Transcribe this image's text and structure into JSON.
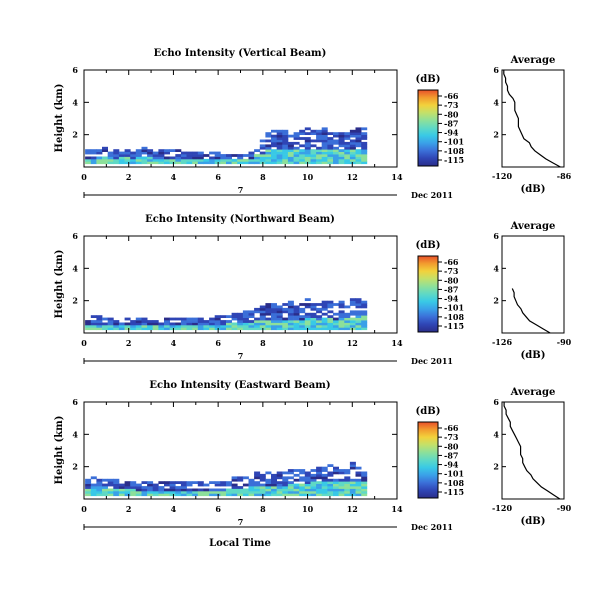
{
  "colors": {
    "colormap": [
      "#2a2d8a",
      "#2f45b5",
      "#3b6fd8",
      "#3aa0e8",
      "#39c9e6",
      "#5fd9c5",
      "#8de09a",
      "#c3e06a",
      "#f2d23c",
      "#f29c2e",
      "#e8502a"
    ],
    "trace": "#000000"
  },
  "chart_data": [
    {
      "type": "heatmap",
      "title": "Echo Intensity (Vertical Beam)",
      "ylabel": "Height (km)",
      "xlim": [
        0,
        14
      ],
      "ylim": [
        0,
        6
      ],
      "x_ticks": [
        "0",
        "2",
        "4",
        "6",
        "8",
        "10",
        "12",
        "14"
      ],
      "y_ticks": [
        "2",
        "4",
        "6"
      ],
      "date_label": "7",
      "date_suffix": "Dec 2011",
      "colorbar": {
        "unit": "(dB)",
        "ticks": [
          "-66",
          "-73",
          "-80",
          "-87",
          "-94",
          "-101",
          "-108",
          "-115"
        ],
        "range": [
          -115,
          -66
        ]
      },
      "echo_top_km": [
        1.0,
        1.0,
        1.1,
        1.2,
        1.1,
        1.0,
        1.0,
        1.0,
        1.0,
        1.1,
        1.2,
        1.0,
        1.0,
        1.0,
        1.0,
        1.0,
        1.0,
        0.9,
        0.9,
        0.9,
        0.9,
        0.9,
        0.9,
        0.9,
        0.8,
        0.8,
        0.8,
        0.7,
        0.8,
        0.9,
        1.2,
        1.6,
        2.1,
        2.2,
        2.2,
        2.3,
        2.0,
        2.1,
        2.2,
        2.3,
        2.2,
        2.3,
        2.3,
        2.1,
        2.0,
        2.0,
        2.1,
        2.2,
        2.4,
        2.3
      ],
      "echo_mid_km": [
        0.5,
        0.5,
        0.6,
        0.6,
        0.6,
        0.5,
        0.6,
        0.6,
        0.5,
        0.6,
        0.6,
        0.6,
        0.5,
        0.5,
        0.5,
        0.5,
        0.5,
        0.5,
        0.4,
        0.4,
        0.5,
        0.4,
        0.4,
        0.5,
        0.4,
        0.4,
        0.4,
        0.4,
        0.4,
        0.5,
        0.7,
        0.8,
        1.0,
        1.0,
        1.0,
        1.1,
        1.0,
        1.0,
        1.0,
        1.1,
        1.0,
        1.0,
        1.1,
        1.0,
        1.0,
        1.0,
        1.0,
        1.0,
        1.0,
        1.0
      ],
      "profile": {
        "title": "Average",
        "xlabel": "(dB)",
        "xlim": [
          -120,
          -86
        ],
        "x_ticks": [
          "-120",
          "-86"
        ],
        "y_ticks": [
          "2",
          "4",
          "6"
        ],
        "height_km": [
          0.0,
          0.25,
          0.5,
          0.75,
          1.0,
          1.25,
          1.5,
          1.75,
          2.0,
          2.25,
          2.5,
          2.75,
          3.0,
          3.25,
          3.5,
          3.75,
          4.0,
          4.25,
          4.5,
          4.75,
          5.0,
          5.25,
          5.5,
          5.75,
          6.0
        ],
        "power_db": [
          -88,
          -92,
          -96,
          -99,
          -102,
          -104,
          -105,
          -108,
          -109,
          -110,
          -111,
          -111,
          -111,
          -112,
          -113,
          -113,
          -113,
          -114,
          -116,
          -117,
          -117,
          -118,
          -118,
          -119,
          -119
        ]
      }
    },
    {
      "type": "heatmap",
      "title": "Echo Intensity (Northward Beam)",
      "ylabel": "Height (km)",
      "xlim": [
        0,
        14
      ],
      "ylim": [
        0,
        6
      ],
      "x_ticks": [
        "0",
        "2",
        "4",
        "6",
        "8",
        "10",
        "12",
        "14"
      ],
      "y_ticks": [
        "2",
        "4",
        "6"
      ],
      "date_label": "7",
      "date_suffix": "Dec 2011",
      "colorbar": {
        "unit": "(dB)",
        "ticks": [
          "-66",
          "-73",
          "-80",
          "-87",
          "-94",
          "-101",
          "-108",
          "-115"
        ],
        "range": [
          -115,
          -66
        ]
      },
      "echo_top_km": [
        0.9,
        1.0,
        1.0,
        0.9,
        0.9,
        0.8,
        0.8,
        0.9,
        0.8,
        0.9,
        0.9,
        0.9,
        0.9,
        0.9,
        0.9,
        0.9,
        0.9,
        0.9,
        0.9,
        0.9,
        0.9,
        0.9,
        0.9,
        1.0,
        1.0,
        1.1,
        1.2,
        1.3,
        1.3,
        1.4,
        1.5,
        1.6,
        1.7,
        1.8,
        1.7,
        1.8,
        1.9,
        1.7,
        1.8,
        2.0,
        1.9,
        1.8,
        1.9,
        1.9,
        1.8,
        1.9,
        2.0,
        2.0,
        2.1,
        2.1
      ],
      "echo_mid_km": [
        0.5,
        0.5,
        0.5,
        0.5,
        0.5,
        0.5,
        0.5,
        0.5,
        0.5,
        0.5,
        0.5,
        0.5,
        0.5,
        0.5,
        0.5,
        0.5,
        0.5,
        0.5,
        0.5,
        0.5,
        0.5,
        0.5,
        0.5,
        0.5,
        0.5,
        0.6,
        0.6,
        0.6,
        0.6,
        0.6,
        0.7,
        0.7,
        0.7,
        0.8,
        0.8,
        0.8,
        0.8,
        0.8,
        0.8,
        0.9,
        0.9,
        0.8,
        0.9,
        0.9,
        0.8,
        0.9,
        0.9,
        0.9,
        1.0,
        1.0
      ],
      "profile": {
        "title": "Average",
        "xlabel": "(dB)",
        "xlim": [
          -126,
          -90
        ],
        "x_ticks": [
          "-126",
          "-90"
        ],
        "y_ticks": [
          "2",
          "4",
          "6"
        ],
        "height_km": [
          0.0,
          0.25,
          0.5,
          0.75,
          1.0,
          1.25,
          1.5,
          1.75,
          2.0,
          2.25,
          2.5,
          2.75
        ],
        "power_db": [
          -98,
          -102,
          -106,
          -110,
          -112,
          -114,
          -115,
          -117,
          -118,
          -119,
          -119,
          -120
        ]
      }
    },
    {
      "type": "heatmap",
      "title": "Echo Intensity (Eastward Beam)",
      "ylabel": "Height (km)",
      "xlim": [
        0,
        14
      ],
      "ylim": [
        0,
        6
      ],
      "x_ticks": [
        "0",
        "2",
        "4",
        "6",
        "8",
        "10",
        "12",
        "14"
      ],
      "y_ticks": [
        "2",
        "4",
        "6"
      ],
      "date_label": "7",
      "date_suffix": "Dec 2011",
      "colorbar": {
        "unit": "(dB)",
        "ticks": [
          "-66",
          "-73",
          "-80",
          "-87",
          "-94",
          "-101",
          "-108",
          "-115"
        ],
        "range": [
          -115,
          -66
        ]
      },
      "echo_top_km": [
        1.2,
        1.4,
        1.3,
        1.3,
        1.2,
        1.2,
        1.1,
        1.1,
        1.1,
        1.0,
        1.1,
        1.0,
        1.0,
        1.0,
        1.0,
        1.0,
        1.0,
        1.0,
        1.0,
        1.0,
        1.0,
        1.0,
        1.1,
        1.1,
        1.1,
        1.2,
        1.3,
        1.3,
        1.3,
        1.4,
        1.6,
        1.5,
        1.6,
        1.5,
        1.6,
        1.6,
        1.8,
        1.8,
        1.8,
        1.7,
        1.9,
        2.0,
        2.0,
        2.0,
        1.9,
        1.9,
        2.1,
        2.2,
        2.0,
        1.9
      ],
      "echo_mid_km": [
        0.6,
        0.7,
        0.7,
        0.7,
        0.6,
        0.6,
        0.6,
        0.6,
        0.6,
        0.5,
        0.5,
        0.5,
        0.5,
        0.5,
        0.5,
        0.5,
        0.5,
        0.5,
        0.5,
        0.5,
        0.5,
        0.5,
        0.5,
        0.5,
        0.5,
        0.6,
        0.6,
        0.6,
        0.6,
        0.7,
        0.7,
        0.7,
        0.8,
        0.7,
        0.8,
        0.8,
        0.9,
        0.9,
        0.9,
        0.9,
        1.0,
        1.0,
        1.0,
        1.0,
        1.0,
        1.0,
        1.1,
        1.1,
        1.0,
        1.0
      ],
      "profile": {
        "title": "Average",
        "xlabel": "(dB)",
        "xlim": [
          -120,
          -90
        ],
        "x_ticks": [
          "-120",
          "-90"
        ],
        "y_ticks": [
          "2",
          "4",
          "6"
        ],
        "height_km": [
          0.0,
          0.25,
          0.5,
          0.75,
          1.0,
          1.25,
          1.5,
          1.75,
          2.0,
          2.25,
          2.5,
          2.75,
          3.0,
          3.25,
          3.5,
          3.75,
          4.0,
          4.25,
          4.5,
          4.75,
          5.0,
          5.25,
          5.5,
          5.75,
          6.0
        ],
        "power_db": [
          -92,
          -95,
          -98,
          -101,
          -103,
          -105,
          -106,
          -108,
          -109,
          -110,
          -110,
          -111,
          -111,
          -111,
          -112,
          -113,
          -114,
          -115,
          -116,
          -116,
          -117,
          -118,
          -118,
          -119,
          -119
        ]
      }
    }
  ],
  "footer": {
    "xlabel": "Local Time"
  }
}
